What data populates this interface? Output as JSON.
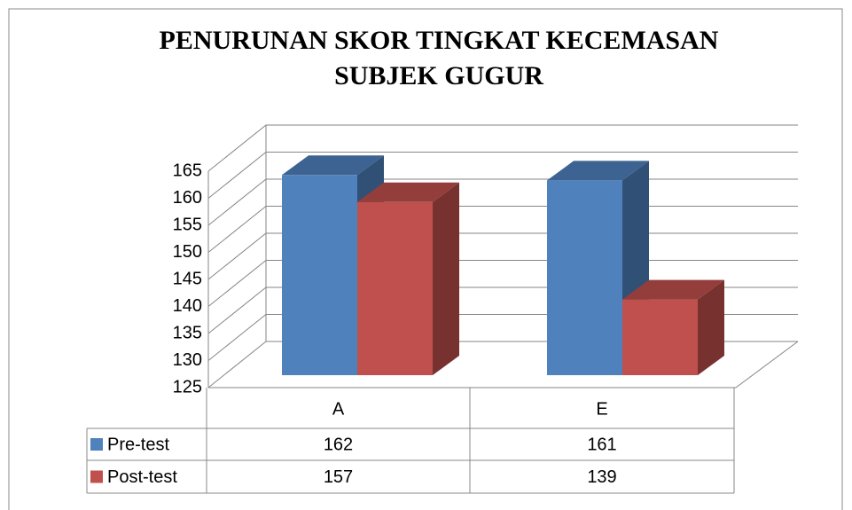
{
  "chart_data": {
    "type": "bar3d",
    "title": [
      "PENURUNAN SKOR TINGKAT KECEMASAN",
      "SUBJEK GUGUR"
    ],
    "categories": [
      "A",
      "E"
    ],
    "series": [
      {
        "name": "Pre-test",
        "color": "#4f81bd",
        "values": [
          162,
          161
        ]
      },
      {
        "name": "Post-test",
        "color": "#c0504d",
        "values": [
          157,
          139
        ]
      }
    ],
    "ylim": [
      125,
      165
    ],
    "yticks": [
      125,
      130,
      135,
      140,
      145,
      150,
      155,
      160,
      165
    ],
    "grid": true
  }
}
